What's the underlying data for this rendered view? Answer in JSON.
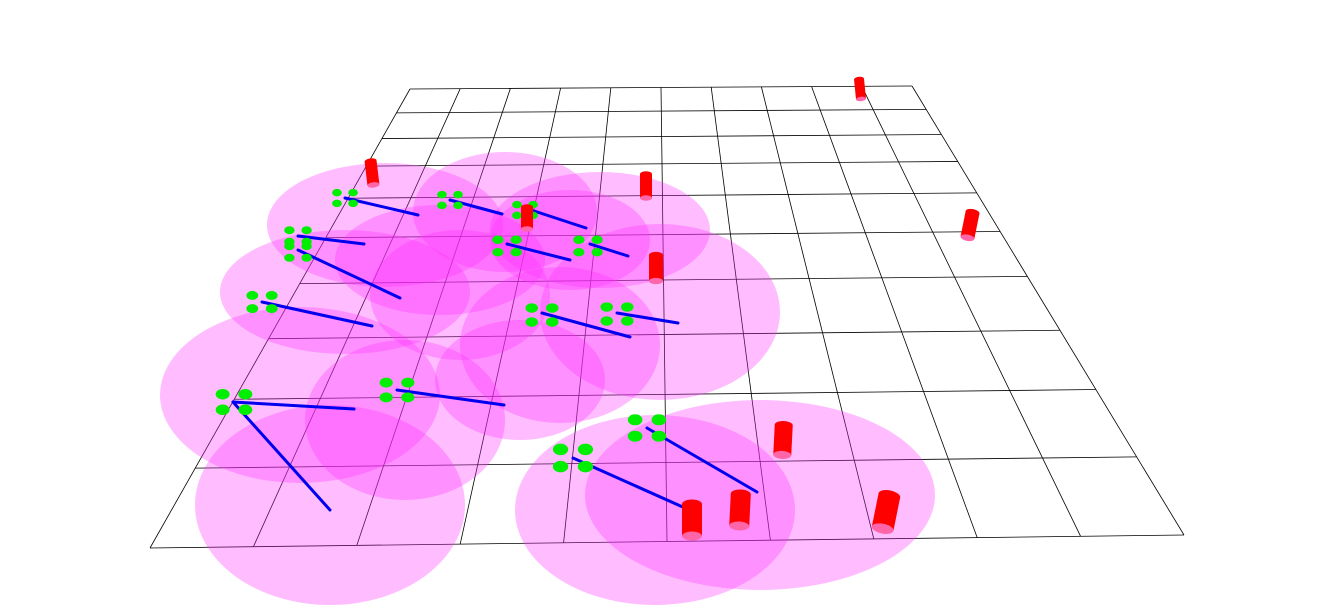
{
  "scene": {
    "background_color": "#ffffff",
    "grid_line_color": "#000000",
    "coverage_color": "#ff33ff",
    "coverage_opacity": 0.32,
    "drone_color": "#00ee00",
    "heading_color": "#0000ee",
    "obstacle_color": "#ff0000",
    "obstacle_shade_color": "#ff66aa",
    "grid_columns": 10,
    "grid_rows": 10,
    "drone_count": 14,
    "obstacle_count": 10
  }
}
